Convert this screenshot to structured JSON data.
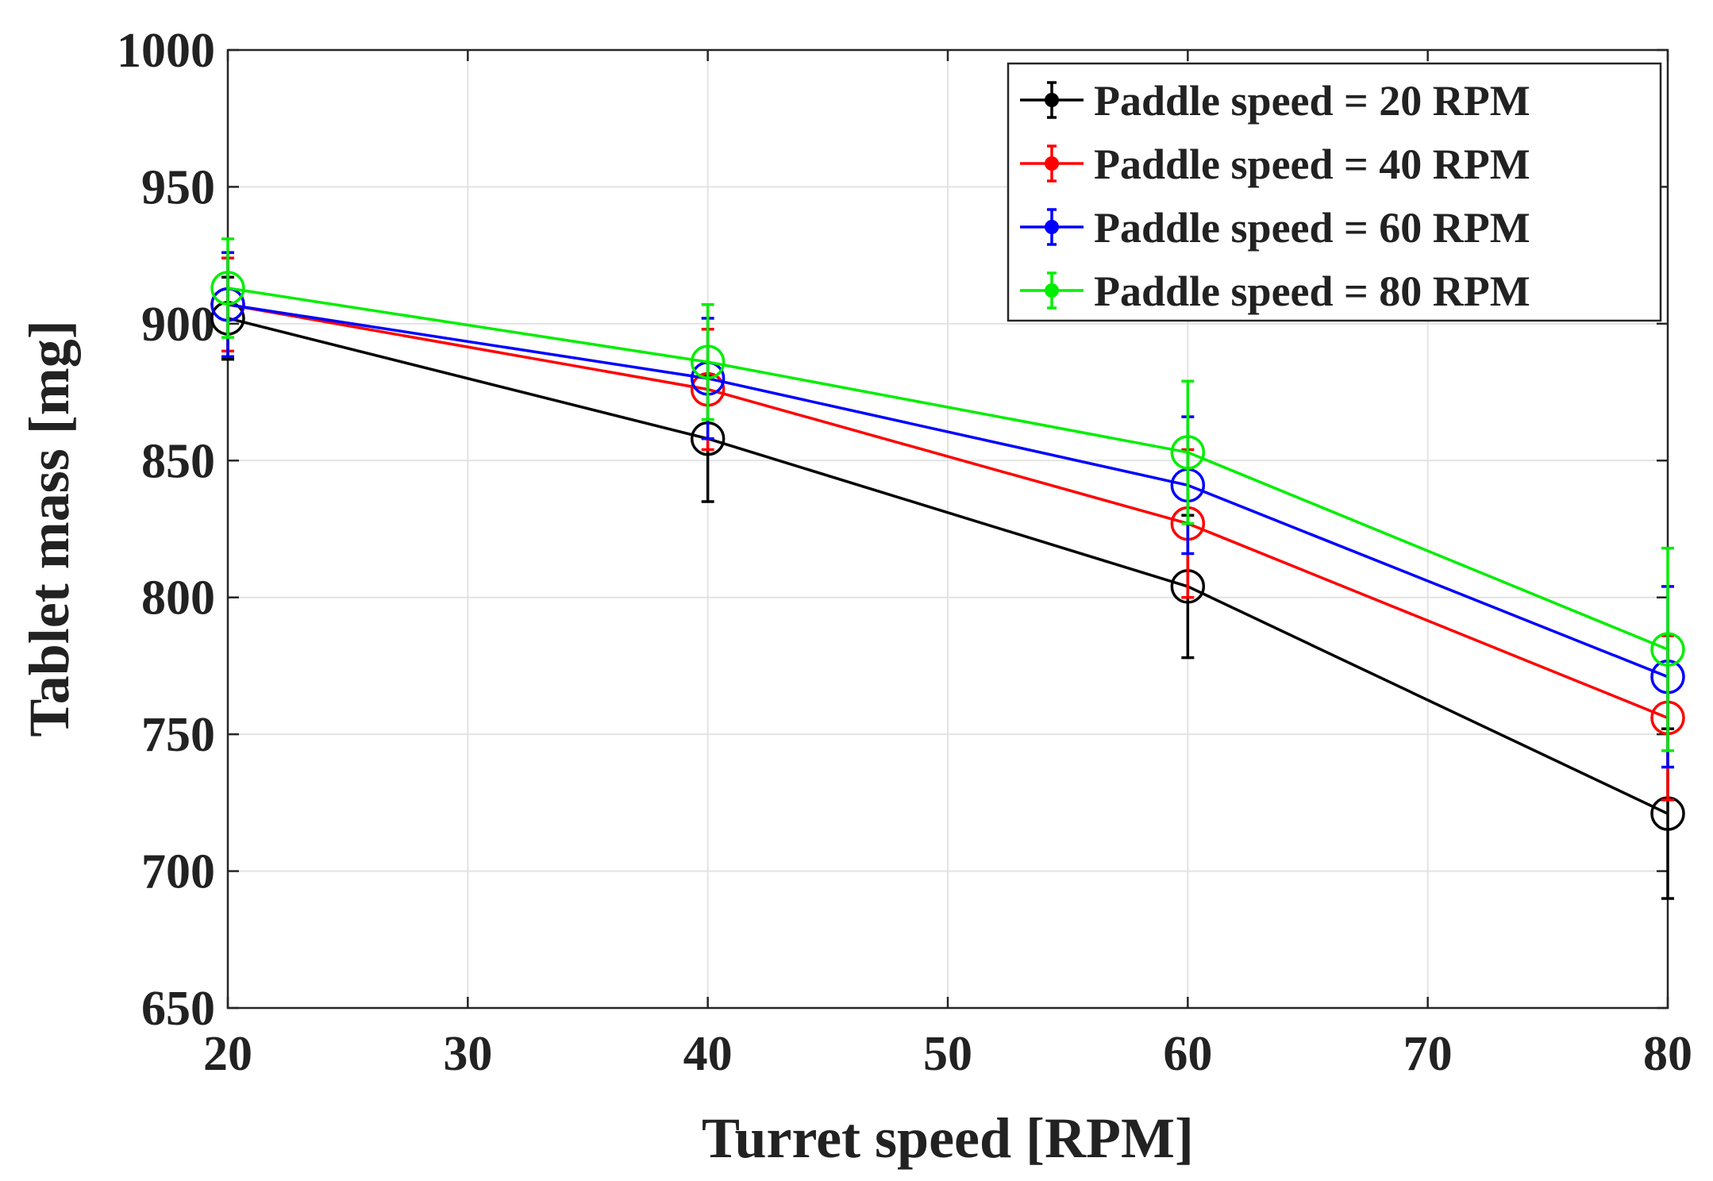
{
  "chart_data": {
    "type": "line",
    "title": "",
    "xlabel": "Turret speed [RPM]",
    "ylabel": "Tablet mass [mg]",
    "xlim": [
      20,
      80
    ],
    "ylim": [
      650,
      1000
    ],
    "xticks": [
      20,
      30,
      40,
      50,
      60,
      70,
      80
    ],
    "yticks": [
      650,
      700,
      750,
      800,
      850,
      900,
      950,
      1000
    ],
    "grid": true,
    "legend_position": "top-right",
    "x": [
      20,
      40,
      60,
      80
    ],
    "series": [
      {
        "name": "Paddle speed = 20 RPM",
        "color": "#000000",
        "values": [
          902,
          858,
          804,
          721
        ],
        "errors": [
          15,
          23,
          26,
          31
        ]
      },
      {
        "name": "Paddle speed = 40 RPM",
        "color": "#ff0000",
        "values": [
          907,
          876,
          827,
          756
        ],
        "errors": [
          17,
          22,
          27,
          30
        ]
      },
      {
        "name": "Paddle speed = 60 RPM",
        "color": "#0000ff",
        "values": [
          907,
          880,
          841,
          771
        ],
        "errors": [
          19,
          22,
          25,
          33
        ]
      },
      {
        "name": "Paddle speed = 80 RPM",
        "color": "#00ee00",
        "values": [
          913,
          886,
          853,
          781
        ],
        "errors": [
          18,
          21,
          26,
          37
        ]
      }
    ]
  }
}
